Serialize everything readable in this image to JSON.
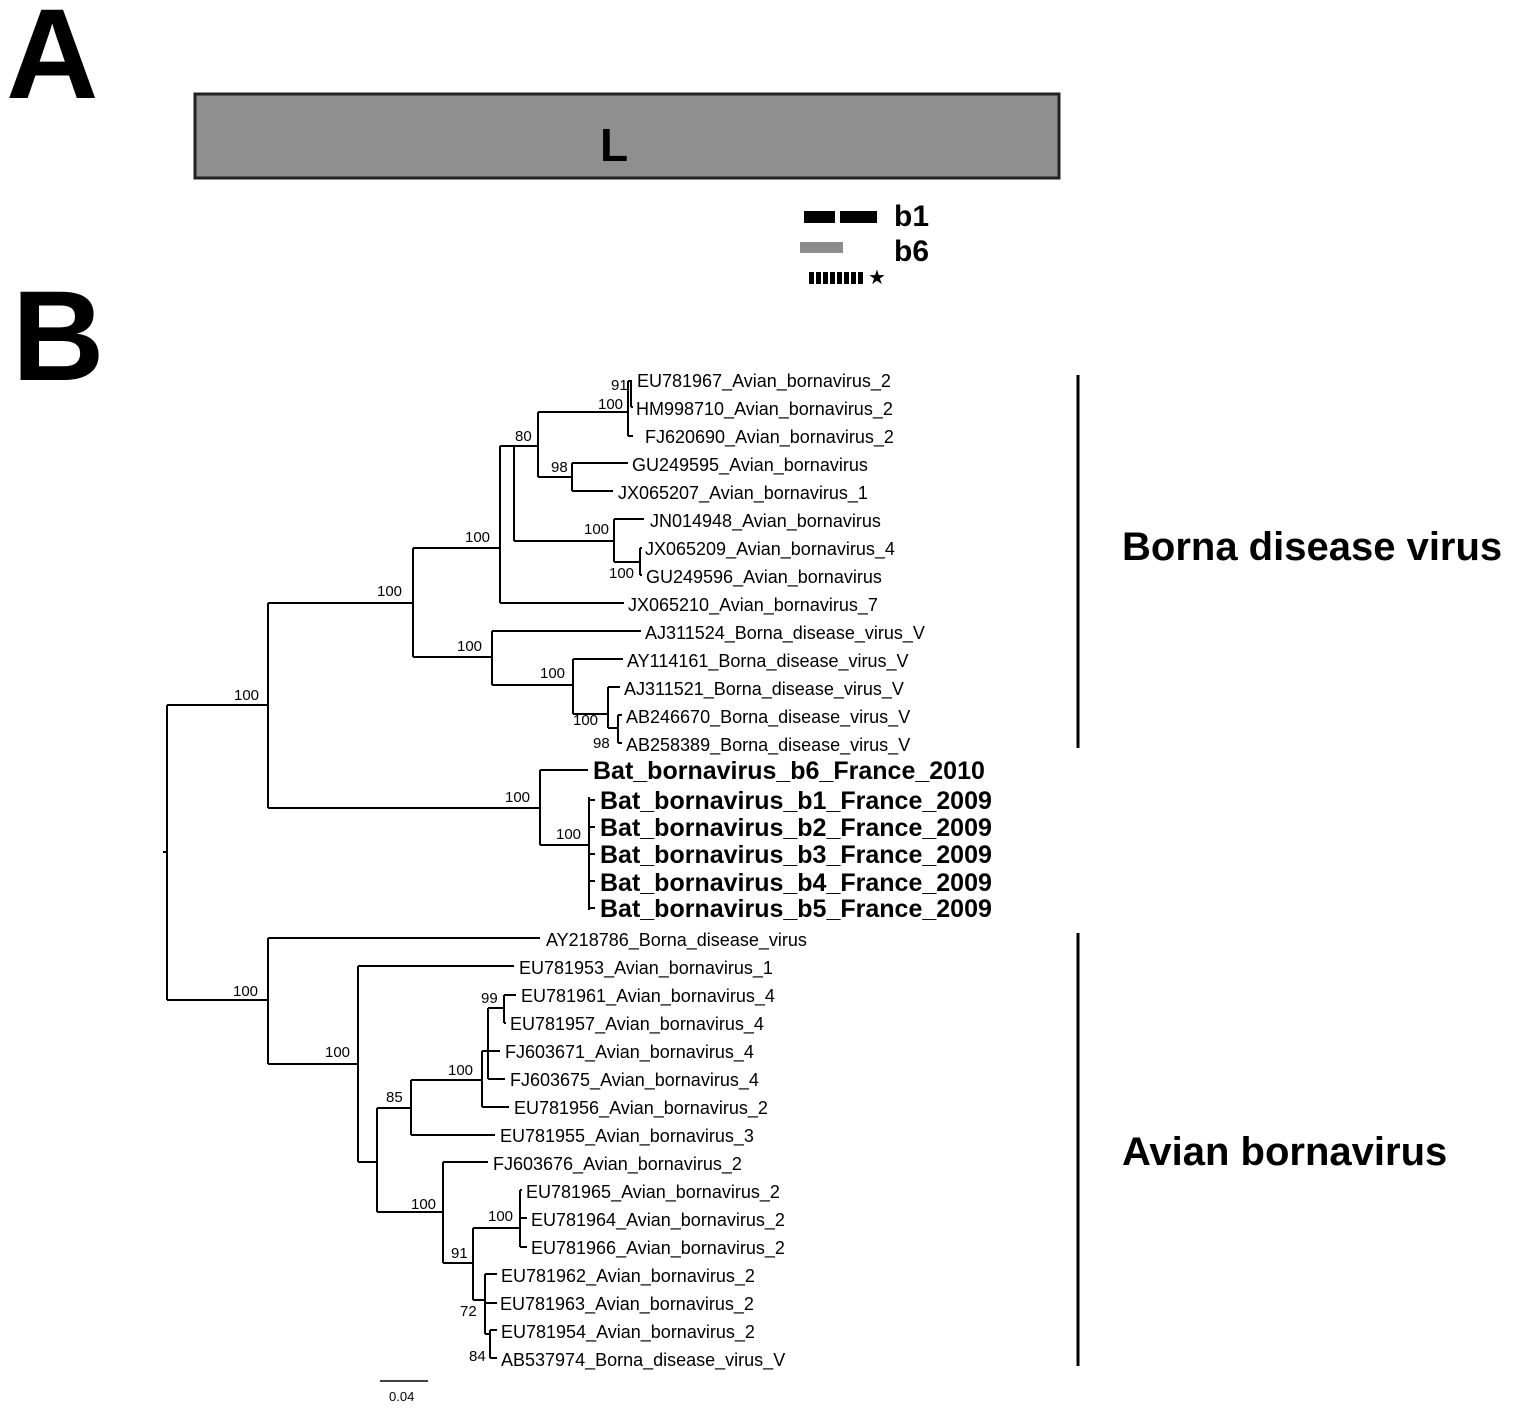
{
  "panel_a": {
    "letter": "A",
    "gene_label": "L",
    "fragments": [
      {
        "label": "b1",
        "color": "#000000",
        "style": "dashed-thick"
      },
      {
        "label": "b6",
        "color": "#8c8c8c",
        "style": "solid"
      },
      {
        "label": "",
        "color": "#000000",
        "style": "dotted",
        "marker": "★"
      }
    ],
    "gene_color": "#8f8f8f"
  },
  "panel_b": {
    "letter": "B",
    "leaves": [
      {
        "id": "EU781967",
        "label": "EU781967_Avian_bornavirus_2",
        "bold": false
      },
      {
        "id": "HM998710",
        "label": "HM998710_Avian_bornavirus_2",
        "bold": false
      },
      {
        "id": "FJ620690",
        "label": "FJ620690_Avian_bornavirus_2",
        "bold": false
      },
      {
        "id": "GU249595",
        "label": "GU249595_Avian_bornavirus",
        "bold": false
      },
      {
        "id": "JX065207",
        "label": "JX065207_Avian_bornavirus_1",
        "bold": false
      },
      {
        "id": "JN014948",
        "label": "JN014948_Avian_bornavirus",
        "bold": false
      },
      {
        "id": "JX065209",
        "label": "JX065209_Avian_bornavirus_4",
        "bold": false
      },
      {
        "id": "GU249596",
        "label": "GU249596_Avian_bornavirus",
        "bold": false
      },
      {
        "id": "JX065210",
        "label": "JX065210_Avian_bornavirus_7",
        "bold": false
      },
      {
        "id": "AJ311524",
        "label": "AJ311524_Borna_disease_virus_V",
        "bold": false
      },
      {
        "id": "AY114161",
        "label": "AY114161_Borna_disease_virus_V",
        "bold": false
      },
      {
        "id": "AJ311521",
        "label": "AJ311521_Borna_disease_virus_V",
        "bold": false
      },
      {
        "id": "AB246670",
        "label": "AB246670_Borna_disease_virus_V",
        "bold": false
      },
      {
        "id": "AB258389",
        "label": "AB258389_Borna_disease_virus_V",
        "bold": false
      },
      {
        "id": "b6",
        "label": "Bat_bornavirus_b6_France_2010",
        "bold": true
      },
      {
        "id": "b1",
        "label": "Bat_bornavirus_b1_France_2009",
        "bold": true
      },
      {
        "id": "b2",
        "label": "Bat_bornavirus_b2_France_2009",
        "bold": true
      },
      {
        "id": "b3",
        "label": "Bat_bornavirus_b3_France_2009",
        "bold": true
      },
      {
        "id": "b4",
        "label": "Bat_bornavirus_b4_France_2009",
        "bold": true
      },
      {
        "id": "b5",
        "label": "Bat_bornavirus_b5_France_2009",
        "bold": true
      },
      {
        "id": "AY218786",
        "label": "AY218786_Borna_disease_virus",
        "bold": false
      },
      {
        "id": "EU781953",
        "label": "EU781953_Avian_bornavirus_1",
        "bold": false
      },
      {
        "id": "EU781961",
        "label": "EU781961_Avian_bornavirus_4",
        "bold": false
      },
      {
        "id": "EU781957",
        "label": "EU781957_Avian_bornavirus_4",
        "bold": false
      },
      {
        "id": "FJ603671",
        "label": "FJ603671_Avian_bornavirus_4",
        "bold": false
      },
      {
        "id": "FJ603675",
        "label": "FJ603675_Avian_bornavirus_4",
        "bold": false
      },
      {
        "id": "EU781956",
        "label": "EU781956_Avian_bornavirus_2",
        "bold": false
      },
      {
        "id": "EU781955",
        "label": "EU781955_Avian_bornavirus_3",
        "bold": false
      },
      {
        "id": "FJ603676",
        "label": "FJ603676_Avian_bornavirus_2",
        "bold": false
      },
      {
        "id": "EU781965",
        "label": "EU781965_Avian_bornavirus_2",
        "bold": false
      },
      {
        "id": "EU781964",
        "label": "EU781964_Avian_bornavirus_2",
        "bold": false
      },
      {
        "id": "EU781966",
        "label": "EU781966_Avian_bornavirus_2",
        "bold": false
      },
      {
        "id": "EU781962",
        "label": "EU781962_Avian_bornavirus_2",
        "bold": false
      },
      {
        "id": "EU781963",
        "label": "EU781963_Avian_bornavirus_2",
        "bold": false
      },
      {
        "id": "EU781954",
        "label": "EU781954_Avian_bornavirus_2",
        "bold": false
      },
      {
        "id": "AB537974",
        "label": "AB537974_Borna_disease_virus_V",
        "bold": false
      }
    ],
    "bootstrap_values": [
      "91",
      "100",
      "80",
      "98",
      "100",
      "100",
      "100",
      "100",
      "100",
      "100",
      "100",
      "98",
      "100",
      "100",
      "100",
      "100",
      "100",
      "99",
      "100",
      "85",
      "100",
      "100",
      "91",
      "72",
      "84"
    ],
    "clades": [
      {
        "label": "Borna disease virus"
      },
      {
        "label": "Avian bornavirus"
      }
    ],
    "scale_bar": {
      "label": "0.04",
      "value": 0.04
    }
  }
}
